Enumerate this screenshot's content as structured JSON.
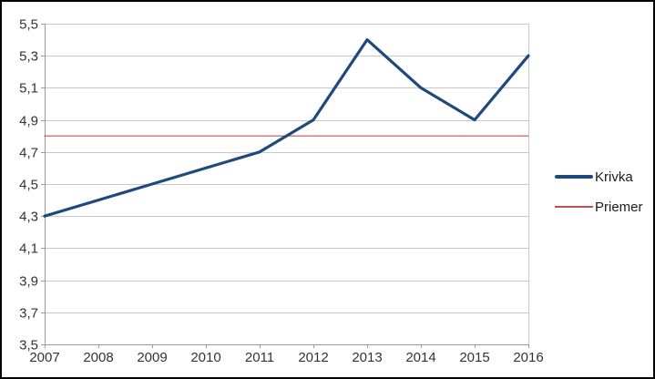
{
  "chart_data": {
    "type": "line",
    "x_labels": [
      "2007",
      "2008",
      "2009",
      "2010",
      "2011",
      "2012",
      "2013",
      "2014",
      "2015",
      "2016"
    ],
    "series": [
      {
        "name": "Krivka",
        "values": [
          4.3,
          4.4,
          4.5,
          4.6,
          4.7,
          4.9,
          5.4,
          5.1,
          4.9,
          5.3
        ],
        "color": "#1F497D",
        "stroke_width": 3.2
      },
      {
        "name": "Priemer",
        "values": [
          4.8,
          4.8,
          4.8,
          4.8,
          4.8,
          4.8,
          4.8,
          4.8,
          4.8,
          4.8
        ],
        "color": "#C0504D",
        "stroke_width": 1.2
      }
    ],
    "title": "",
    "xlabel": "",
    "ylabel": "",
    "ylim": [
      3.5,
      5.5
    ],
    "ytick_step": 0.2,
    "y_tick_labels": [
      "3,5",
      "3,7",
      "3,9",
      "4,1",
      "4,3",
      "4,5",
      "4,7",
      "4,9",
      "5,1",
      "5,3",
      "5,5"
    ],
    "grid": true,
    "legend_position": "right"
  },
  "colors": {
    "background": "#ffffff",
    "outer_border": "#000000",
    "gridline": "#c9c9c9",
    "plot_border": "#c9c9c9",
    "axis_line": "#9a9a9a",
    "tick_text": "#333333",
    "legend_text": "#1a1a1a"
  }
}
